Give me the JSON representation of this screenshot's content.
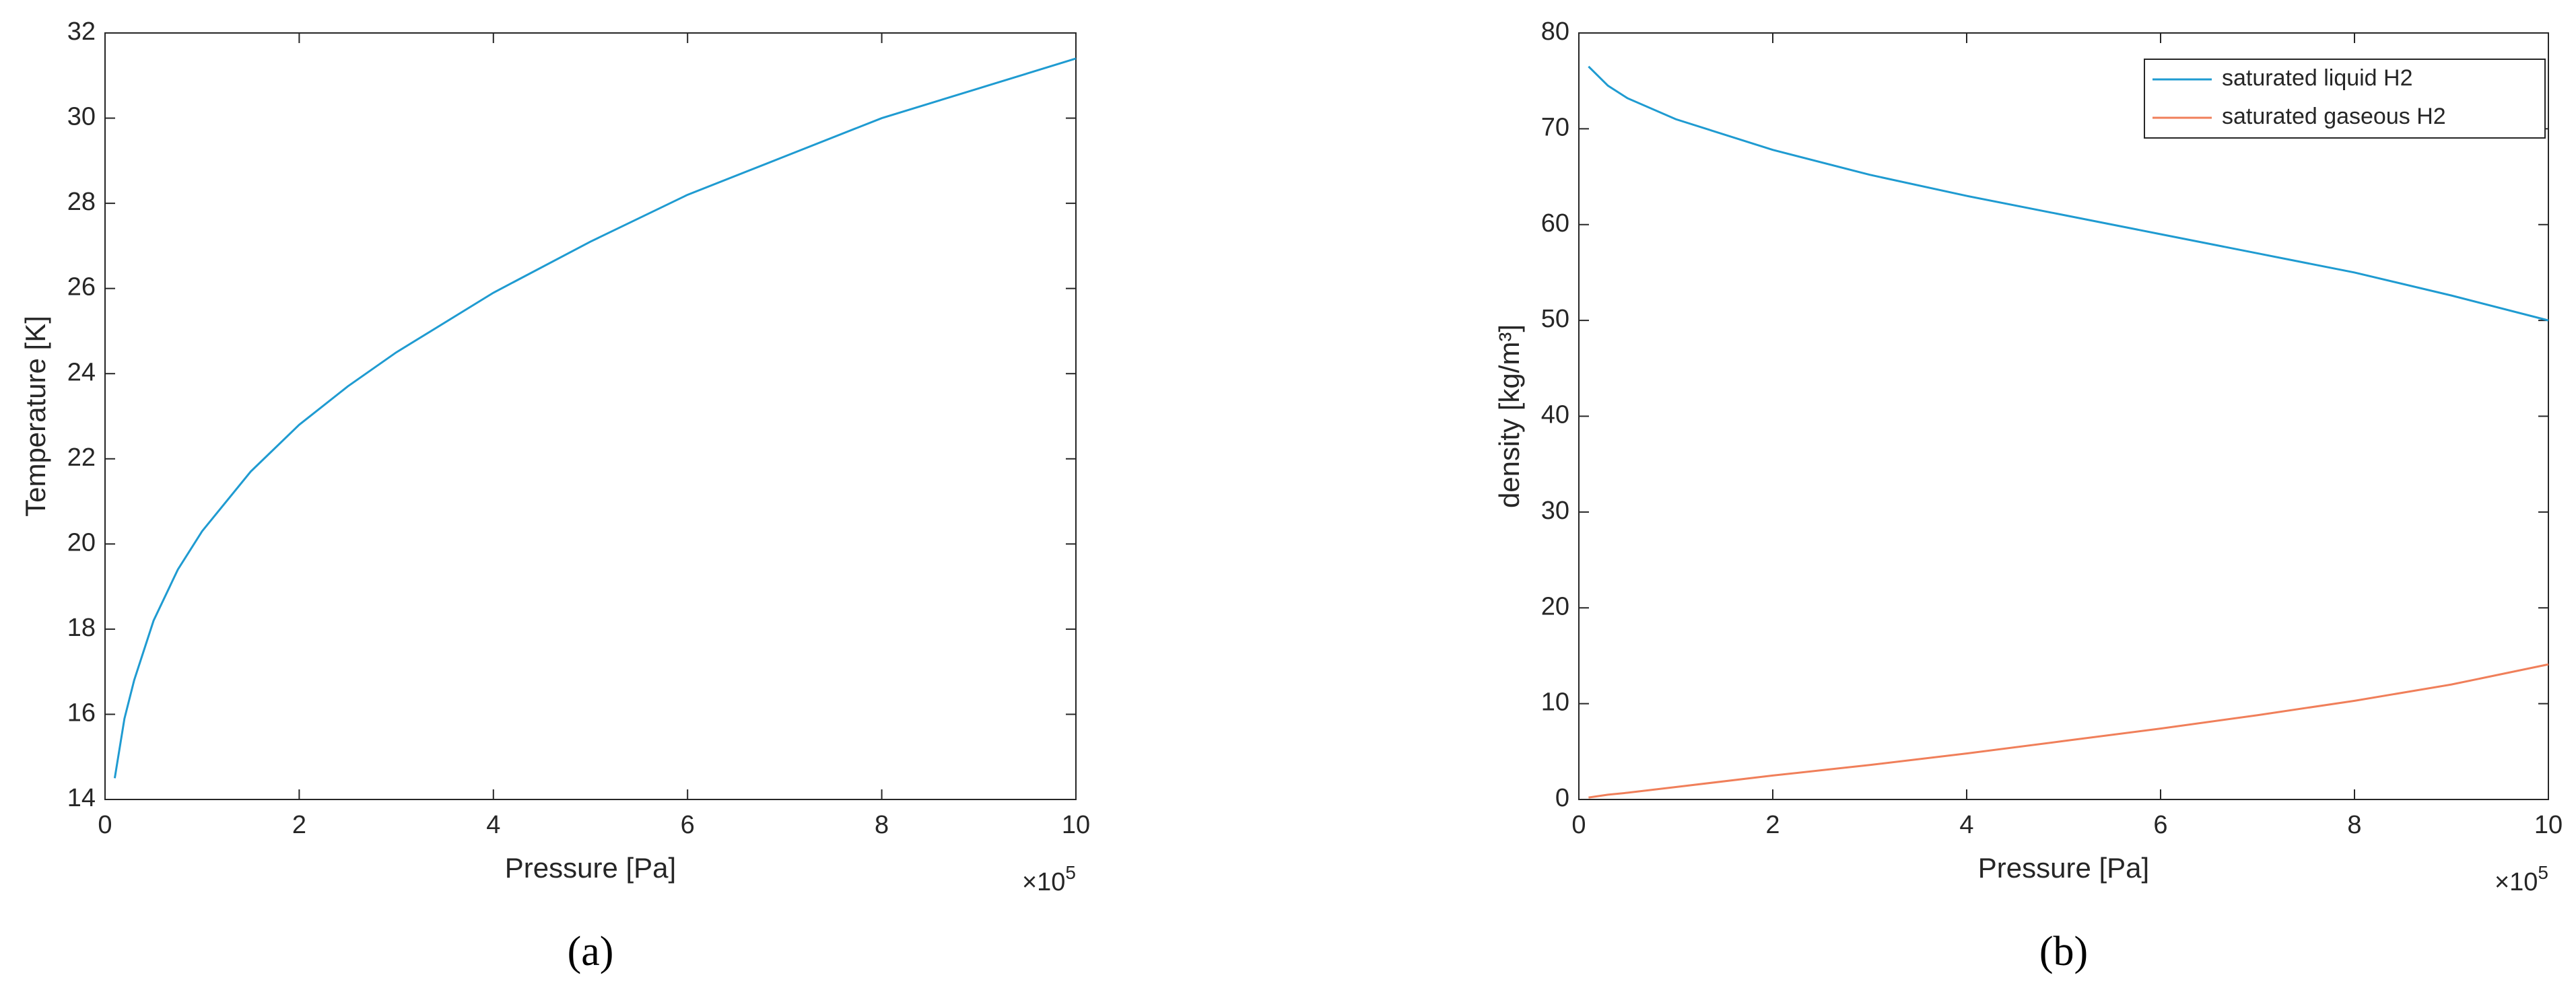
{
  "chart_data": [
    {
      "type": "line",
      "caption": "(a)",
      "xlabel": "Pressure [Pa]",
      "ylabel": "Temperature [K]",
      "x_multiplier": "×10",
      "x_multiplier_exponent": "5",
      "x": [
        0.1,
        0.2,
        0.3,
        0.5,
        0.75,
        1,
        1.5,
        2,
        2.5,
        3,
        4,
        5,
        6,
        7,
        8,
        9,
        10
      ],
      "values": [
        14.5,
        15.9,
        16.8,
        18.2,
        19.4,
        20.3,
        21.7,
        22.8,
        23.7,
        24.5,
        25.9,
        27.1,
        28.2,
        29.1,
        30.0,
        30.7,
        31.4
      ],
      "color": "#1f9bd1",
      "xlim": [
        0,
        10
      ],
      "xticks": [
        0,
        2,
        4,
        6,
        8,
        10
      ],
      "ylim": [
        14,
        32
      ],
      "yticks": [
        14,
        16,
        18,
        20,
        22,
        24,
        26,
        28,
        30,
        32
      ]
    },
    {
      "type": "line",
      "caption": "(b)",
      "xlabel": "Pressure [Pa]",
      "ylabel": "density [kg/m³]",
      "x_multiplier": "×10",
      "x_multiplier_exponent": "5",
      "x": [
        0.1,
        0.3,
        0.5,
        1,
        2,
        3,
        4,
        5,
        6,
        7,
        8,
        9,
        10
      ],
      "series": [
        {
          "name": "saturated liquid H2",
          "color": "#1f9bd1",
          "values": [
            76.5,
            74.5,
            73.2,
            71.0,
            67.8,
            65.2,
            63.0,
            61.0,
            59.0,
            57.0,
            55.0,
            52.6,
            50.0
          ]
        },
        {
          "name": "saturated gaseous H2",
          "color": "#f07f5a",
          "values": [
            0.2,
            0.5,
            0.7,
            1.3,
            2.5,
            3.6,
            4.8,
            6.1,
            7.4,
            8.8,
            10.3,
            12.0,
            14.1
          ]
        }
      ],
      "legend": "northeast",
      "xlim": [
        0,
        10
      ],
      "xticks": [
        0,
        2,
        4,
        6,
        8,
        10
      ],
      "ylim": [
        0,
        80
      ],
      "yticks": [
        0,
        10,
        20,
        30,
        40,
        50,
        60,
        70,
        80
      ]
    }
  ]
}
